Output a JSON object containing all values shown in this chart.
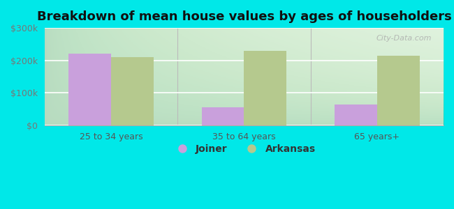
{
  "title": "Breakdown of mean house values by ages of householders",
  "categories": [
    "25 to 34 years",
    "35 to 64 years",
    "65 years+"
  ],
  "joiner_values": [
    220000,
    55000,
    65000
  ],
  "arkansas_values": [
    210000,
    230000,
    215000
  ],
  "joiner_color": "#c9a0dc",
  "arkansas_color": "#b5c98e",
  "ylim": [
    0,
    300000
  ],
  "yticks": [
    0,
    100000,
    200000,
    300000
  ],
  "ytick_labels": [
    "$0",
    "$100k",
    "$200k",
    "$300k"
  ],
  "bar_width": 0.32,
  "legend_labels": [
    "Joiner",
    "Arkansas"
  ],
  "title_fontsize": 13,
  "tick_fontsize": 9,
  "legend_fontsize": 10,
  "outer_bg": "#00e8e8",
  "plot_bg": "#e8f5e8",
  "watermark": "City-Data.com"
}
